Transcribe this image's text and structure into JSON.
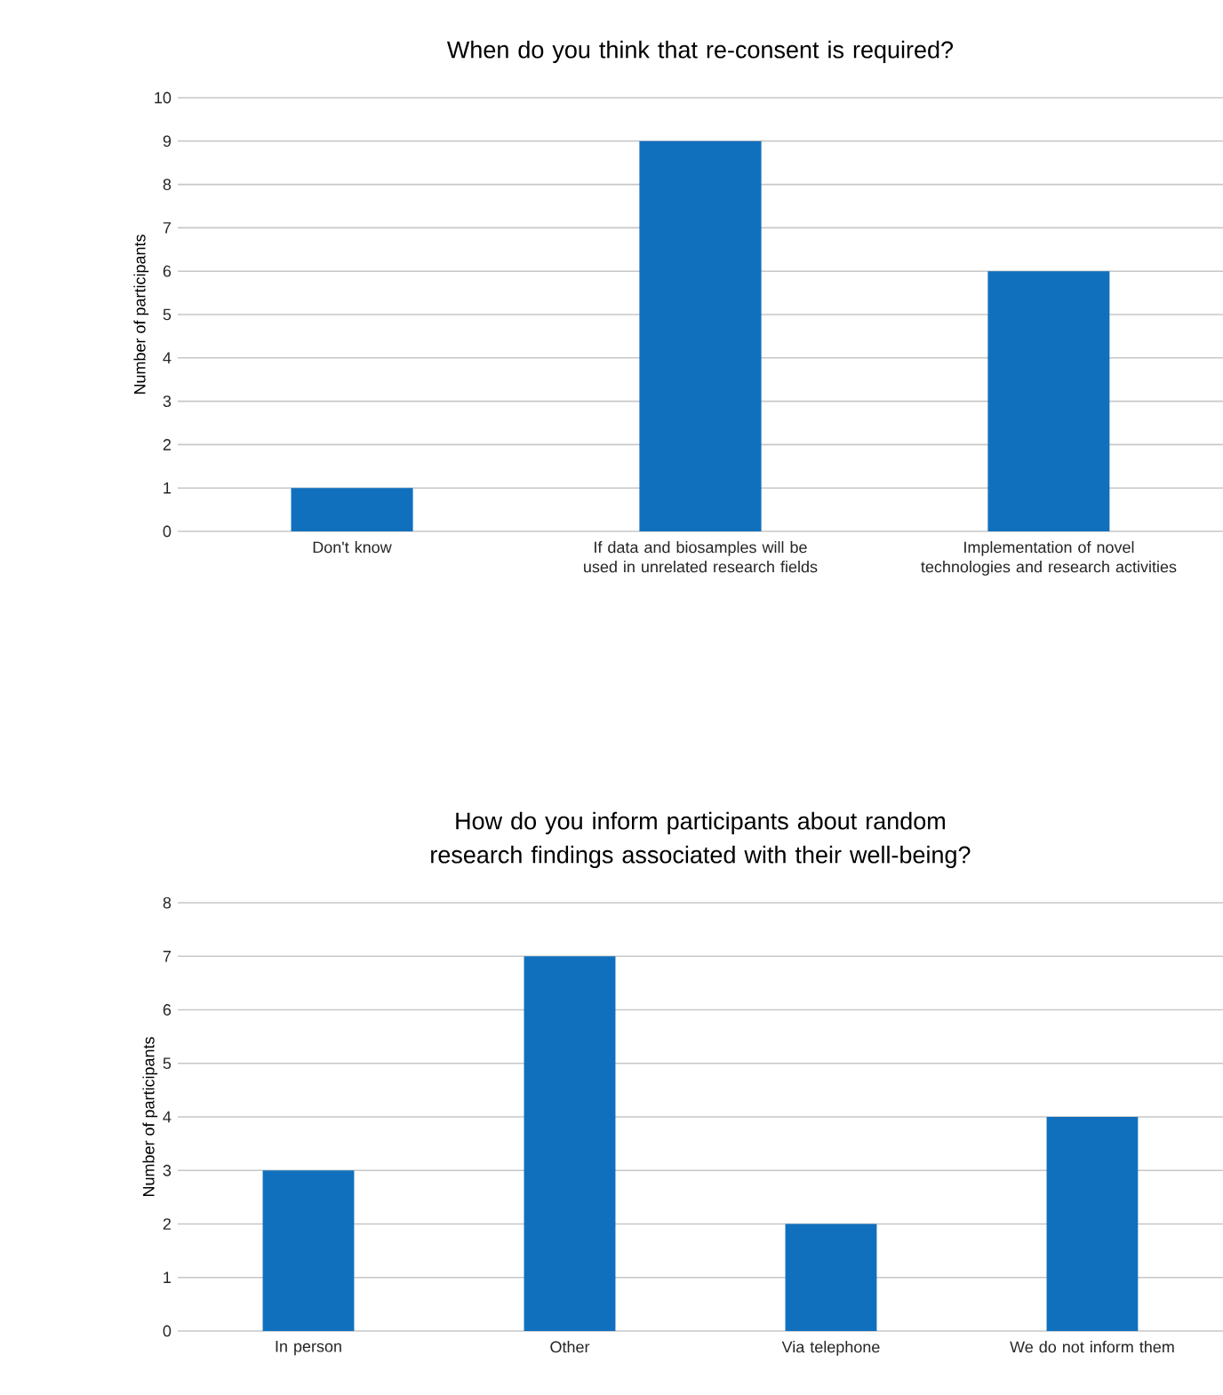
{
  "chart_data": [
    {
      "type": "bar",
      "title": "When do you think that re-consent is required?",
      "ylabel": "Number of participants",
      "categories": [
        "Don't know",
        "If data and biosamples will be used in unrelated research fields",
        "Implementation of novel technologies and research activities"
      ],
      "values": [
        1,
        9,
        6
      ],
      "color": "#1170bd",
      "ylim": [
        0,
        10
      ],
      "yticks": [
        0,
        1,
        2,
        3,
        4,
        5,
        6,
        7,
        8,
        9,
        10
      ],
      "grid": "y"
    },
    {
      "type": "bar",
      "title": "How do you inform participants about random research findings associated with their well-being?",
      "ylabel": "Number of participants",
      "categories": [
        "In person",
        "Other",
        "Via telephone",
        "We do not inform them"
      ],
      "values": [
        3,
        7,
        2,
        4
      ],
      "color": "#1170bd",
      "ylim": [
        0,
        8
      ],
      "yticks": [
        0,
        1,
        2,
        3,
        4,
        5,
        6,
        7,
        8
      ],
      "grid": "y"
    }
  ]
}
